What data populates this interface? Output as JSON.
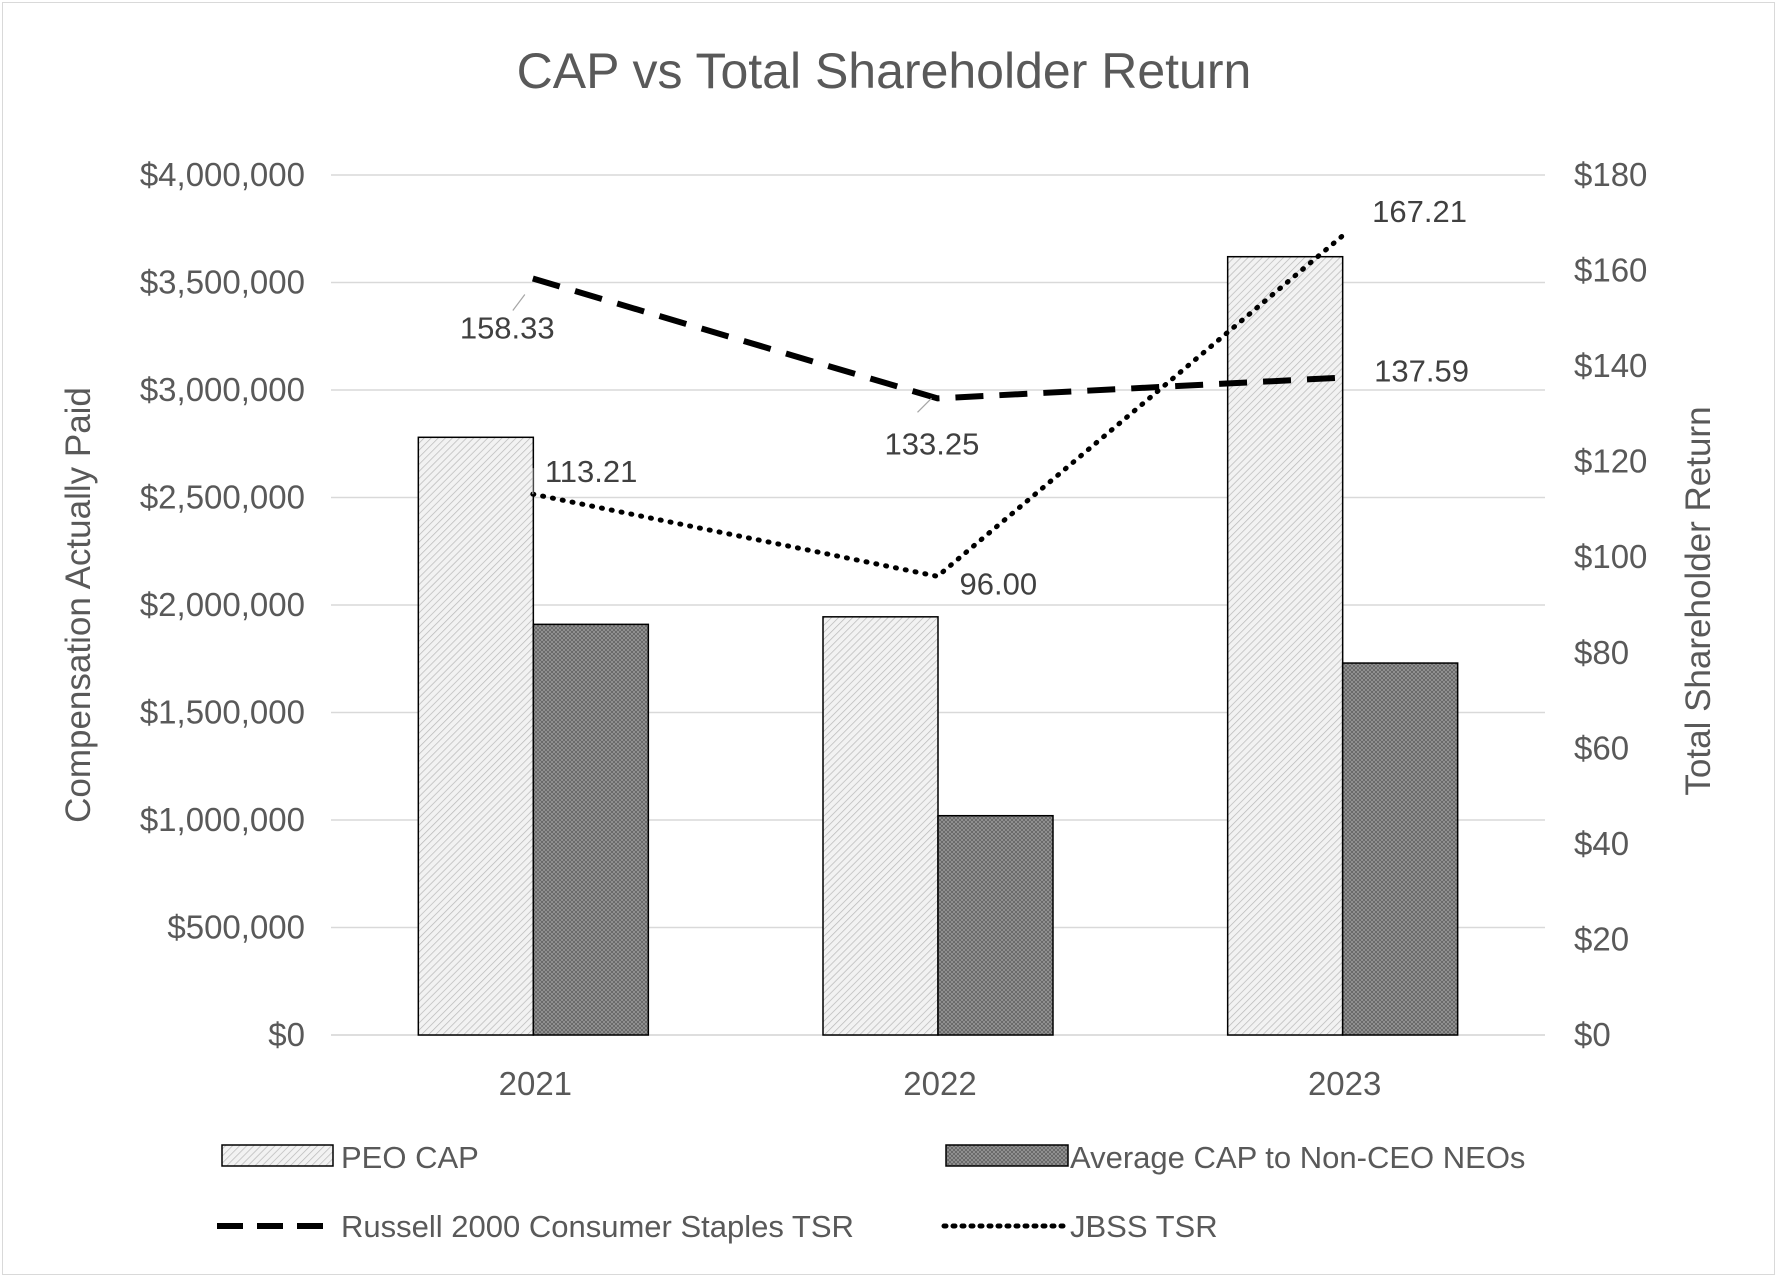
{
  "chart_data": {
    "type": "bar",
    "title": "CAP vs Total Shareholder Return",
    "categories": [
      "2021",
      "2022",
      "2023"
    ],
    "y_left": {
      "label": "Compensation Actually Paid",
      "range": [
        0,
        4000000
      ],
      "ticks": [
        0,
        500000,
        1000000,
        1500000,
        2000000,
        2500000,
        3000000,
        3500000,
        4000000
      ],
      "tick_labels": [
        "$0",
        "$500,000",
        "$1,000,000",
        "$1,500,000",
        "$2,000,000",
        "$2,500,000",
        "$3,000,000",
        "$3,500,000",
        "$4,000,000"
      ]
    },
    "y_right": {
      "label": "Total Shareholder Return",
      "range": [
        0,
        180
      ],
      "ticks": [
        0,
        20,
        40,
        60,
        80,
        100,
        120,
        140,
        160,
        180
      ],
      "tick_labels": [
        "$0",
        "$20",
        "$40",
        "$60",
        "$80",
        "$100",
        "$120",
        "$140",
        "$160",
        "$180"
      ]
    },
    "grid": true,
    "legend_position": "bottom",
    "series": [
      {
        "name": "PEO CAP",
        "kind": "bar",
        "axis": "left",
        "values": [
          2780000,
          1945000,
          3620000
        ]
      },
      {
        "name": "Average CAP to Non-CEO NEOs",
        "kind": "bar",
        "axis": "left",
        "values": [
          1910000,
          1020000,
          1730000
        ]
      },
      {
        "name": "Russell 2000 Consumer Staples TSR",
        "kind": "line",
        "style": "dashed",
        "axis": "right",
        "values": [
          158.33,
          133.25,
          137.59
        ],
        "labels": [
          "158.33",
          "133.25",
          "137.59"
        ]
      },
      {
        "name": "JBSS TSR",
        "kind": "line",
        "style": "dotted",
        "axis": "right",
        "values": [
          113.21,
          96.0,
          167.21
        ],
        "labels": [
          "113.21",
          "96.00",
          "167.21"
        ]
      }
    ],
    "legend": [
      "PEO CAP",
      "Average CAP to Non-CEO NEOs",
      "Russell 2000 Consumer Staples TSR",
      "JBSS TSR"
    ]
  }
}
